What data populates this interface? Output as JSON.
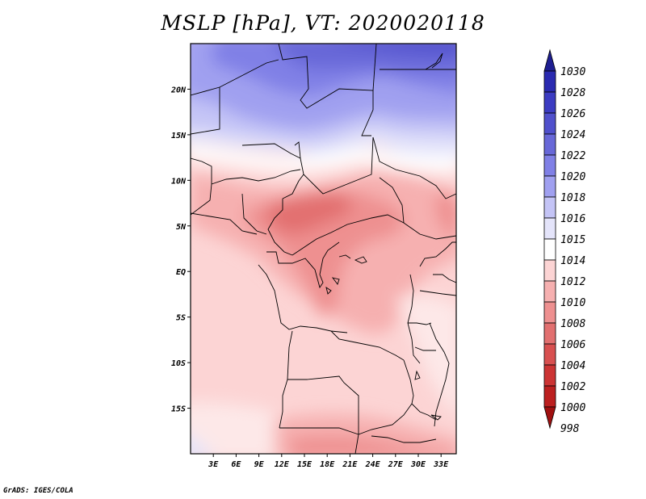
{
  "title": "MSLP [hPa], VT: 2020020118",
  "footer": "GrADS: IGES/COLA",
  "map": {
    "projection": "lat-lon",
    "lon_range": [
      0,
      35
    ],
    "lat_range": [
      -20,
      25
    ],
    "lat_ticks": [
      {
        "value": 20,
        "label": "20N"
      },
      {
        "value": 15,
        "label": "15N"
      },
      {
        "value": 10,
        "label": "10N"
      },
      {
        "value": 5,
        "label": "5N"
      },
      {
        "value": 0,
        "label": "EQ"
      },
      {
        "value": -5,
        "label": "5S"
      },
      {
        "value": -10,
        "label": "10S"
      },
      {
        "value": -15,
        "label": "15S"
      }
    ],
    "lon_ticks": [
      {
        "value": 3,
        "label": "3E"
      },
      {
        "value": 6,
        "label": "6E"
      },
      {
        "value": 9,
        "label": "9E"
      },
      {
        "value": 12,
        "label": "12E"
      },
      {
        "value": 15,
        "label": "15E"
      },
      {
        "value": 18,
        "label": "18E"
      },
      {
        "value": 21,
        "label": "21E"
      },
      {
        "value": 24,
        "label": "24E"
      },
      {
        "value": 27,
        "label": "27E"
      },
      {
        "value": 30,
        "label": "30E"
      },
      {
        "value": 33,
        "label": "33E"
      }
    ]
  },
  "colorbar": {
    "labels": [
      "1030",
      "1028",
      "1026",
      "1024",
      "1022",
      "1020",
      "1018",
      "1016",
      "1015",
      "1014",
      "1012",
      "1010",
      "1008",
      "1006",
      "1004",
      "1002",
      "1000",
      "998"
    ],
    "colors": [
      "#1e1e91",
      "#2a2ab0",
      "#3c3cc2",
      "#5050cc",
      "#6868d8",
      "#8080e6",
      "#a0a0f0",
      "#c4c4f6",
      "#e4e4fa",
      "#ffffff",
      "#fcd4d4",
      "#f6b0b0",
      "#ee9090",
      "#e27070",
      "#d85050",
      "#cc3434",
      "#bc2020",
      "#a01010"
    ]
  }
}
